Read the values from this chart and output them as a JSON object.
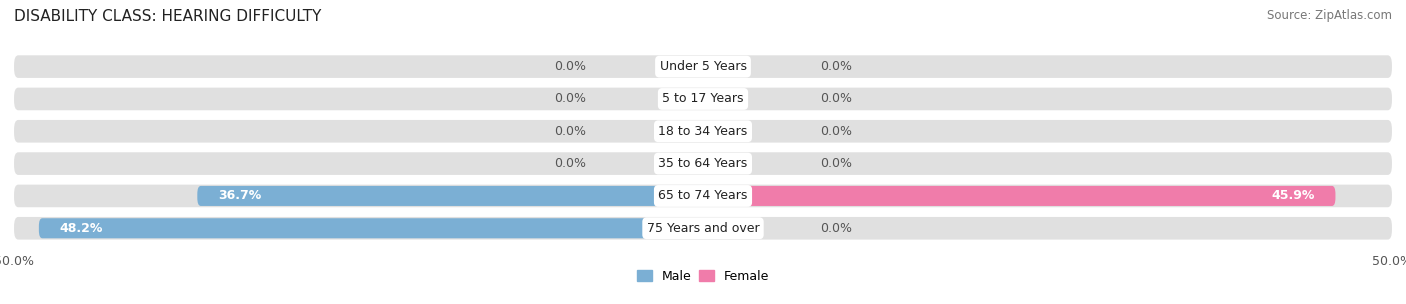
{
  "title": "DISABILITY CLASS: HEARING DIFFICULTY",
  "source": "Source: ZipAtlas.com",
  "categories": [
    "Under 5 Years",
    "5 to 17 Years",
    "18 to 34 Years",
    "35 to 64 Years",
    "65 to 74 Years",
    "75 Years and over"
  ],
  "male_values": [
    0.0,
    0.0,
    0.0,
    0.0,
    36.7,
    48.2
  ],
  "female_values": [
    0.0,
    0.0,
    0.0,
    0.0,
    45.9,
    0.0
  ],
  "male_color": "#7bafd4",
  "female_color": "#f07caa",
  "bar_bg_color": "#e0e0e0",
  "xlim": 50.0,
  "bar_height": 0.62,
  "title_fontsize": 11,
  "label_fontsize": 9,
  "tick_fontsize": 9,
  "source_fontsize": 8.5,
  "value_label_color_inside": "white",
  "value_label_color_outside": "#555555"
}
